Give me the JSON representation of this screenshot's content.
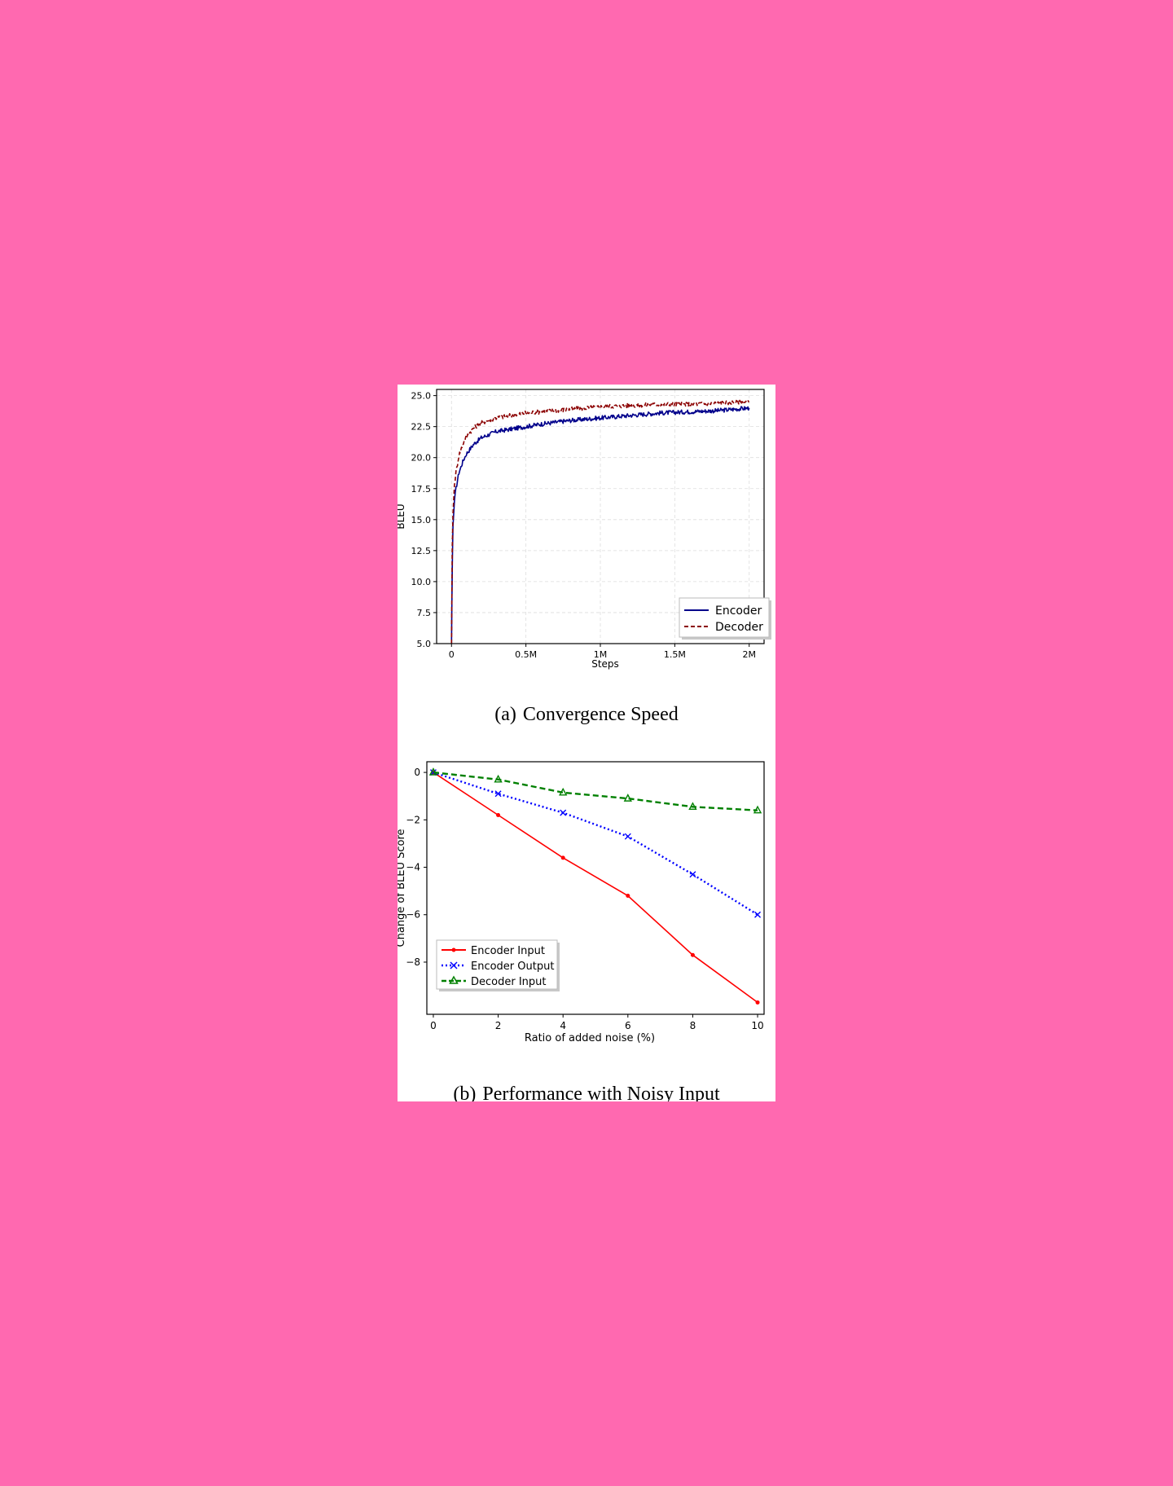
{
  "colors": {
    "background": "#ff69b0",
    "encoder": "#00008b",
    "decoder": "#8b0000",
    "encoder_input": "#ff0000",
    "encoder_output": "#0000ff",
    "decoder_input": "#008000"
  },
  "captions": {
    "a_label": "(a)",
    "a_text": "Convergence Speed",
    "b_label": "(b)",
    "b_text": "Performance with Noisy Input"
  },
  "chart_data": [
    {
      "id": "convergence",
      "type": "line",
      "xlabel": "Steps",
      "ylabel": "BLEU",
      "xlim": [
        -0.1,
        2.1
      ],
      "ylim": [
        5.0,
        25.5
      ],
      "xticks": [
        0,
        0.5,
        1,
        1.5,
        2
      ],
      "xtick_labels": [
        "0",
        "0.5M",
        "1M",
        "1.5M",
        "2M"
      ],
      "yticks": [
        5,
        7.5,
        10,
        12.5,
        15,
        17.5,
        20,
        22.5,
        25
      ],
      "ytick_labels": [
        "5.0",
        "7.5",
        "10.0",
        "12.5",
        "15.0",
        "17.5",
        "20.0",
        "22.5",
        "25.0"
      ],
      "grid": true,
      "legend_position": "bottom-right",
      "x_unit": "millions of steps",
      "series": [
        {
          "name": "Encoder",
          "style": "solid",
          "x": [
            0,
            0.005,
            0.01,
            0.02,
            0.03,
            0.05,
            0.08,
            0.1,
            0.15,
            0.2,
            0.3,
            0.4,
            0.5,
            0.6,
            0.8,
            1.0,
            1.2,
            1.4,
            1.6,
            1.8,
            2.0
          ],
          "y": [
            5.0,
            11.0,
            14.5,
            16.5,
            17.5,
            18.8,
            19.8,
            20.3,
            21.1,
            21.6,
            22.1,
            22.3,
            22.5,
            22.7,
            23.0,
            23.2,
            23.4,
            23.6,
            23.7,
            23.8,
            24.0
          ]
        },
        {
          "name": "Decoder",
          "style": "dashed",
          "x": [
            0,
            0.005,
            0.01,
            0.02,
            0.03,
            0.05,
            0.08,
            0.1,
            0.15,
            0.2,
            0.3,
            0.4,
            0.5,
            0.6,
            0.8,
            1.0,
            1.2,
            1.4,
            1.6,
            1.8,
            2.0
          ],
          "y": [
            5.0,
            12.5,
            15.5,
            17.8,
            18.8,
            20.2,
            21.2,
            21.7,
            22.4,
            22.8,
            23.2,
            23.4,
            23.6,
            23.7,
            23.9,
            24.1,
            24.2,
            24.3,
            24.3,
            24.4,
            24.5
          ]
        }
      ]
    },
    {
      "id": "noisy-input",
      "type": "line",
      "xlabel": "Ratio of added noise (%)",
      "ylabel": "Change of BLEU Score",
      "xlim": [
        -0.2,
        10.2
      ],
      "ylim": [
        -10.2,
        0.45
      ],
      "xticks": [
        0,
        2,
        4,
        6,
        8,
        10
      ],
      "xtick_labels": [
        "0",
        "2",
        "4",
        "6",
        "8",
        "10"
      ],
      "yticks": [
        0,
        -2,
        -4,
        -6,
        -8
      ],
      "ytick_labels": [
        "0",
        "−2",
        "−4",
        "−6",
        "−8"
      ],
      "grid": false,
      "legend_position": "bottom-left",
      "series": [
        {
          "name": "Encoder Input",
          "style": "solid",
          "marker": "dot",
          "x": [
            0,
            2,
            4,
            6,
            8,
            10
          ],
          "y": [
            0,
            -1.8,
            -3.6,
            -5.2,
            -7.7,
            -9.7
          ]
        },
        {
          "name": "Encoder Output",
          "style": "dotted",
          "marker": "x",
          "x": [
            0,
            2,
            4,
            6,
            8,
            10
          ],
          "y": [
            0,
            -0.9,
            -1.7,
            -2.7,
            -4.3,
            -6.0
          ]
        },
        {
          "name": "Decoder Input",
          "style": "dashed",
          "marker": "triangle",
          "x": [
            0,
            2,
            4,
            6,
            8,
            10
          ],
          "y": [
            0,
            -0.3,
            -0.85,
            -1.1,
            -1.45,
            -1.6
          ]
        }
      ]
    }
  ]
}
